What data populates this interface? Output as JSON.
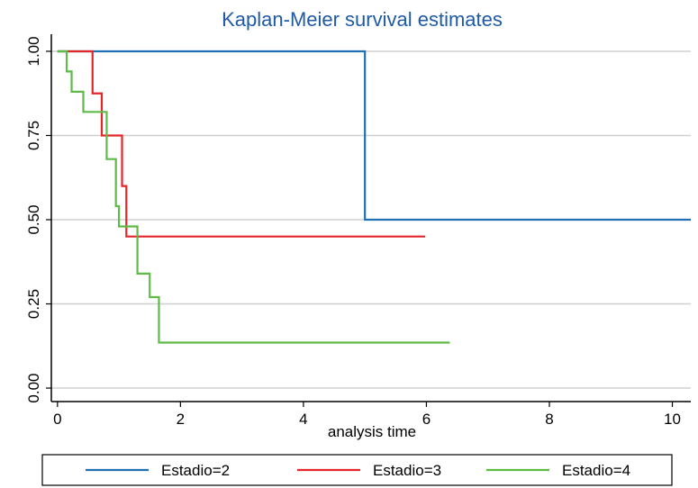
{
  "chart_data": {
    "type": "line",
    "title": "Kaplan-Meier survival estimates",
    "xlabel": "analysis time",
    "ylabel": "",
    "xlim": [
      -0.1,
      10.3
    ],
    "ylim": [
      -0.04,
      1.04
    ],
    "x_ticks": [
      0,
      2,
      4,
      6,
      8,
      10
    ],
    "x_tick_labels": [
      "0",
      "2",
      "4",
      "6",
      "8",
      "10"
    ],
    "y_ticks": [
      0,
      0.25,
      0.5,
      0.75,
      1
    ],
    "y_tick_labels": [
      "0.00",
      "0.25",
      "0.50",
      "0.75",
      "1.00"
    ],
    "grid": "horizontal",
    "step": true,
    "legend": "bottom",
    "colors": {
      "title": "#1f5aa6",
      "axis": "#000000",
      "grid": "#d0d0d0"
    },
    "series": [
      {
        "name": "Estadio=2",
        "color": "#1f6fb2",
        "x": [
          0,
          5.0,
          10.3
        ],
        "y": [
          1.0,
          0.5,
          0.5
        ]
      },
      {
        "name": "Estadio=3",
        "color": "#e3262a",
        "x": [
          0,
          0.57,
          0.72,
          1.05,
          1.12,
          5.98
        ],
        "y": [
          1.0,
          0.875,
          0.75,
          0.6,
          0.45,
          0.45
        ]
      },
      {
        "name": "Estadio=4",
        "color": "#5dbb46",
        "x": [
          0,
          0.15,
          0.23,
          0.42,
          0.8,
          0.95,
          1.0,
          1.3,
          1.5,
          1.65,
          6.38
        ],
        "y": [
          1.0,
          0.94,
          0.88,
          0.82,
          0.68,
          0.54,
          0.48,
          0.34,
          0.27,
          0.135,
          0.135
        ]
      }
    ]
  }
}
